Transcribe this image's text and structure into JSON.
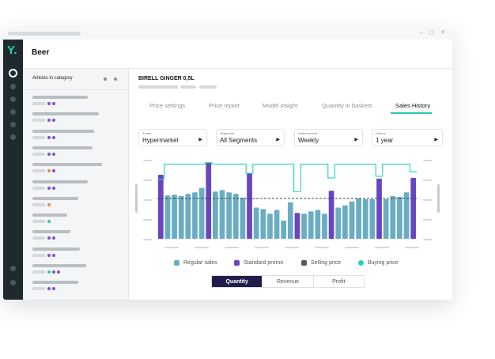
{
  "window": {
    "controls": "–  ▢  ✕"
  },
  "app": {
    "logo": "Y.",
    "title": "Beer"
  },
  "sidebar": {
    "title": "Articles in category",
    "articles": [
      {
        "dots": [
          "#7a55c8",
          "#7a55c8"
        ]
      },
      {
        "dots": [
          "#7a55c8",
          "#7a55c8"
        ]
      },
      {
        "dots": [
          "#7a55c8",
          "#7a55c8"
        ]
      },
      {
        "dots": [
          "#7a55c8",
          "#7a55c8"
        ]
      },
      {
        "dots": [
          "#f0883a",
          "#7a55c8"
        ]
      },
      {
        "dots": [
          "#7a55c8",
          "#7a55c8"
        ]
      },
      {
        "dots": [
          "#f0883a"
        ]
      },
      {
        "dots": [
          "#2ccf9a"
        ]
      },
      {
        "dots": [
          "#7a55c8",
          "#7a55c8"
        ]
      },
      {
        "dots": [
          "#7a55c8",
          "#7a55c8"
        ]
      },
      {
        "dots": [
          "#2ccf9a",
          "#7a55c8",
          "#7a55c8"
        ]
      },
      {
        "dots": [
          "#7a55c8",
          "#7a55c8"
        ]
      }
    ]
  },
  "main": {
    "product": "BIRELL GINGER 0,5L",
    "tabs": [
      "Price settings",
      "Price report",
      "Model insight",
      "Quantity in baskets",
      "Sales History"
    ],
    "active_tab": "Sales History",
    "filters": [
      {
        "label": "Zones",
        "value": "Hypermarket"
      },
      {
        "label": "Segments",
        "value": "All Segments"
      },
      {
        "label": "Sales interval",
        "value": "Weekly"
      },
      {
        "label": "History",
        "value": "1 year"
      }
    ],
    "metric_toggle": [
      "Quantity",
      "Revenue",
      "Profit"
    ],
    "active_metric": "Quantity"
  },
  "colors": {
    "regular": "#6aadc3",
    "promo": "#6a45c2",
    "selling": "#555a5e",
    "buying": "#23d2b5"
  },
  "chart_data": {
    "type": "bar",
    "legend": [
      "Regular sales",
      "Standard promo",
      "Selling price",
      "Buying price"
    ],
    "values": [
      84,
      57,
      58,
      56,
      59,
      61,
      67,
      100,
      62,
      64,
      61,
      59,
      54,
      86,
      41,
      39,
      33,
      38,
      24,
      48,
      34,
      33,
      36,
      38,
      33,
      63,
      41,
      44,
      49,
      53,
      52,
      52,
      79,
      52,
      56,
      55,
      61,
      80
    ],
    "promo": [
      1,
      0,
      0,
      0,
      0,
      0,
      0,
      1,
      0,
      0,
      0,
      0,
      0,
      1,
      0,
      0,
      0,
      0,
      0,
      0,
      1,
      0,
      0,
      0,
      0,
      1,
      0,
      0,
      0,
      0,
      0,
      0,
      1,
      0,
      0,
      0,
      0,
      1
    ],
    "selling_price": 53,
    "buying_price": [
      78,
      98,
      98,
      98,
      98,
      98,
      98,
      100,
      98,
      98,
      98,
      98,
      98,
      86,
      98,
      98,
      98,
      98,
      98,
      98,
      62,
      98,
      98,
      98,
      98,
      80,
      98,
      98,
      98,
      98,
      98,
      98,
      82,
      98,
      98,
      98,
      98,
      88
    ],
    "ylim": [
      0,
      110
    ]
  }
}
